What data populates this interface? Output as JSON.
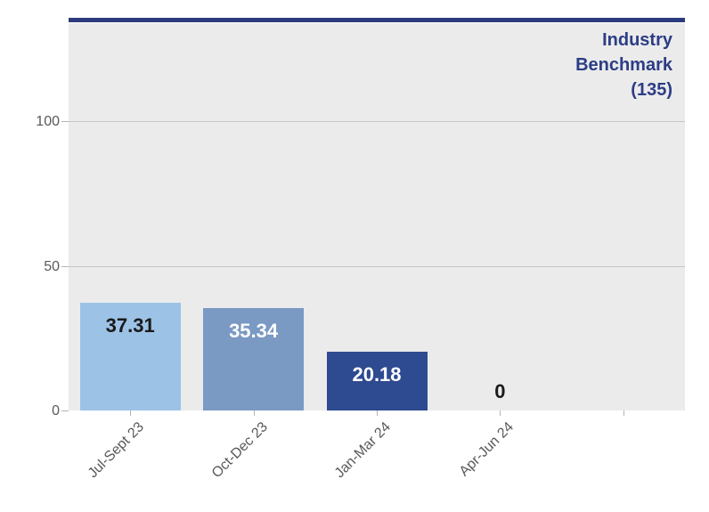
{
  "chart_data": {
    "type": "bar",
    "title": "",
    "xlabel": "",
    "ylabel": "",
    "categories": [
      "Jul-Sept 23",
      "Oct-Dec 23",
      "Jan-Mar 24",
      "Apr-Jun 24"
    ],
    "values": [
      37.31,
      35.34,
      20.18,
      0
    ],
    "bar_labels": [
      "37.31",
      "35.34",
      "20.18",
      "0"
    ],
    "bar_colors": [
      "#9cc3e6",
      "#7a99c3",
      "#2e4a90",
      null
    ],
    "bar_label_colors": [
      "#1a1a1a",
      "#ffffff",
      "#ffffff",
      "#1a1a1a"
    ],
    "y_ticks": [
      0,
      50,
      100
    ],
    "ylim": [
      0,
      136
    ],
    "num_category_slots": 5,
    "grid": "horizontal",
    "legend_position": "none",
    "plot_bg": "#ebebeb",
    "gridline_color": "#c6c6c6",
    "axis_text_color": "#595959",
    "benchmark": {
      "value": 135,
      "line_color": "#2b3b7e",
      "text_color": "#2c3d85",
      "label_lines": [
        "Industry",
        "Benchmark",
        "(135)"
      ]
    }
  }
}
